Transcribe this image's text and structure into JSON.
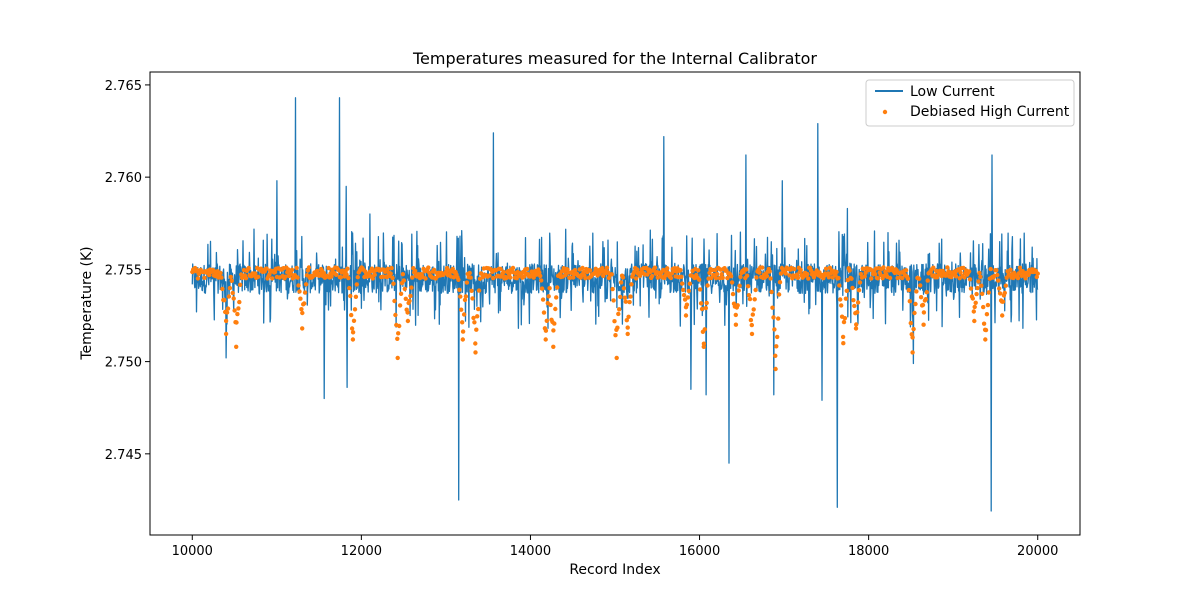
{
  "chart_data": {
    "type": "line",
    "title": "Temperatures measured for the Internal Calibrator",
    "xlabel": "Record Index",
    "ylabel": "Temperature (K)",
    "xlim": [
      9500,
      20500
    ],
    "ylim": [
      2.7406,
      2.7657
    ],
    "x_ticks": [
      10000,
      12000,
      14000,
      16000,
      18000,
      20000
    ],
    "x_tick_labels": [
      "10000",
      "12000",
      "14000",
      "16000",
      "18000",
      "20000"
    ],
    "y_ticks": [
      2.745,
      2.75,
      2.755,
      2.76,
      2.765
    ],
    "y_tick_labels": [
      "2.745",
      "2.750",
      "2.755",
      "2.760",
      "2.765"
    ],
    "grid": false,
    "legend_position": "top-right",
    "x_range": [
      10000,
      20000
    ],
    "series": [
      {
        "name": "Low Current",
        "kind": "line",
        "color": "#1f77b4",
        "baseline_low": 2.7537,
        "baseline_high": 2.7553,
        "noise_high": 2.7572,
        "noise_low": 2.7518,
        "spikes": [
          {
            "x": 11000,
            "y": 2.7598
          },
          {
            "x": 11220,
            "y": 2.7643
          },
          {
            "x": 11740,
            "y": 2.7643
          },
          {
            "x": 11820,
            "y": 2.7595
          },
          {
            "x": 12100,
            "y": 2.758
          },
          {
            "x": 13560,
            "y": 2.7624
          },
          {
            "x": 15580,
            "y": 2.7622
          },
          {
            "x": 16550,
            "y": 2.7612
          },
          {
            "x": 16980,
            "y": 2.7598
          },
          {
            "x": 17400,
            "y": 2.7629
          },
          {
            "x": 17750,
            "y": 2.7583
          },
          {
            "x": 19460,
            "y": 2.7612
          },
          {
            "x": 11560,
            "y": 2.748
          },
          {
            "x": 11830,
            "y": 2.7486
          },
          {
            "x": 13150,
            "y": 2.7425
          },
          {
            "x": 15900,
            "y": 2.7485
          },
          {
            "x": 16080,
            "y": 2.7482
          },
          {
            "x": 16350,
            "y": 2.7445
          },
          {
            "x": 16880,
            "y": 2.7482
          },
          {
            "x": 17450,
            "y": 2.7479
          },
          {
            "x": 17630,
            "y": 2.7421
          },
          {
            "x": 19450,
            "y": 2.7419
          },
          {
            "x": 10400,
            "y": 2.7502
          },
          {
            "x": 18530,
            "y": 2.7499
          }
        ]
      },
      {
        "name": "Debiased High Current",
        "kind": "scatter",
        "color": "#ff7f0e",
        "baseline": 2.7548,
        "dips": [
          {
            "x": 10400,
            "y": 2.7515
          },
          {
            "x": 10520,
            "y": 2.7508
          },
          {
            "x": 11300,
            "y": 2.7518
          },
          {
            "x": 11900,
            "y": 2.7512
          },
          {
            "x": 12430,
            "y": 2.7502
          },
          {
            "x": 12550,
            "y": 2.7522
          },
          {
            "x": 13200,
            "y": 2.7512
          },
          {
            "x": 13350,
            "y": 2.7505
          },
          {
            "x": 14180,
            "y": 2.7512
          },
          {
            "x": 14270,
            "y": 2.7508
          },
          {
            "x": 15020,
            "y": 2.7502
          },
          {
            "x": 15150,
            "y": 2.7515
          },
          {
            "x": 15840,
            "y": 2.7525
          },
          {
            "x": 16050,
            "y": 2.7508
          },
          {
            "x": 16430,
            "y": 2.752
          },
          {
            "x": 16620,
            "y": 2.7515
          },
          {
            "x": 16900,
            "y": 2.7496
          },
          {
            "x": 17700,
            "y": 2.751
          },
          {
            "x": 17850,
            "y": 2.7518
          },
          {
            "x": 18520,
            "y": 2.7505
          },
          {
            "x": 18650,
            "y": 2.752
          },
          {
            "x": 19250,
            "y": 2.7522
          },
          {
            "x": 19380,
            "y": 2.7512
          },
          {
            "x": 19580,
            "y": 2.7525
          }
        ]
      }
    ]
  }
}
